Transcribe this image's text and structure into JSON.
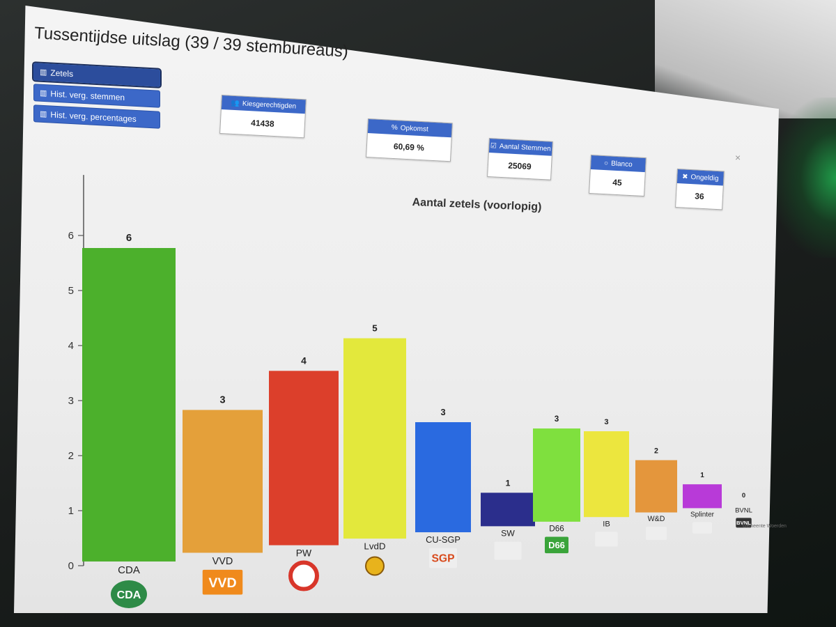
{
  "title": "Tussentijdse uitslag (39 / 39 stembureaus)",
  "nav_buttons": [
    {
      "label": "Zetels",
      "icon": "bar-chart-icon",
      "active": true
    },
    {
      "label": "Hist. verg. stemmen",
      "icon": "bar-chart-icon",
      "active": false
    },
    {
      "label": "Hist. verg. percentages",
      "icon": "bar-chart-icon",
      "active": false
    }
  ],
  "stats": [
    {
      "label": "Kiesgerechtigden",
      "value": "41438",
      "icon": "users-icon"
    },
    {
      "label": "Opkomst",
      "value": "60,69 %",
      "icon": "percent-icon"
    },
    {
      "label": "Aantal Stemmen",
      "value": "25069",
      "icon": "checkbox-icon"
    },
    {
      "label": "Blanco",
      "value": "45",
      "icon": "circle-icon"
    },
    {
      "label": "Ongeldig",
      "value": "36",
      "icon": "cross-icon"
    }
  ],
  "close_glyph": "×",
  "credit": "Gemeente Woerden",
  "chart_data": {
    "type": "bar",
    "title": "Aantal zetels (voorlopig)",
    "xlabel": "",
    "ylabel": "",
    "ylim": [
      0,
      6
    ],
    "yticks": [
      0,
      1,
      2,
      3,
      4,
      5,
      6
    ],
    "grid": false,
    "legend": "none",
    "categories": [
      "CDA",
      "VVD",
      "PW",
      "LvdD",
      "CU-SGP",
      "SW",
      "D66",
      "IB",
      "W&D",
      "Splinter",
      "BVNL"
    ],
    "values": [
      6,
      3,
      4,
      5,
      3,
      1,
      3,
      3,
      2,
      1,
      0
    ],
    "colors": [
      "#4cb02c",
      "#e4a03a",
      "#dc3f2b",
      "#e3e83c",
      "#2a6ae0",
      "#2b2e8c",
      "#7fe03e",
      "#ece63e",
      "#e4963c",
      "#b83ad8",
      "#555555"
    ]
  },
  "party_logos": [
    {
      "text": "CDA",
      "icon": "cda-logo-icon"
    },
    {
      "text": "VVD",
      "icon": "vvd-logo-icon"
    },
    {
      "text": "",
      "icon": "pw-logo-icon"
    },
    {
      "text": "",
      "icon": "lvdd-logo-icon"
    },
    {
      "text": "SGP",
      "icon": "cu-sgp-logo-icon"
    },
    {
      "text": "",
      "icon": "sw-logo-icon"
    },
    {
      "text": "D66",
      "icon": "d66-logo-icon"
    },
    {
      "text": "",
      "icon": "ib-logo-icon"
    },
    {
      "text": "",
      "icon": "wd-logo-icon"
    },
    {
      "text": "",
      "icon": "splinter-logo-icon"
    },
    {
      "text": "BVNL",
      "icon": "bvnl-logo-icon"
    }
  ]
}
